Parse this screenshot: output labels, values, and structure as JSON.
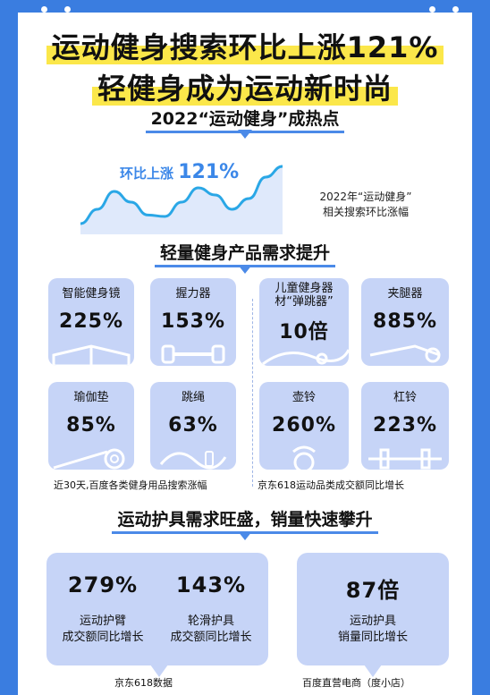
{
  "header": {
    "title_line1": "运动健身搜索环比上涨121%",
    "title_line2": "轻健身成为运动新时尚"
  },
  "section1": {
    "title": "2022“运动健身”成热点",
    "headline_prefix": "环比上涨",
    "headline_value": "121%",
    "caption_line1": "2022年“运动健身”",
    "caption_line2": "相关搜索环比涨幅"
  },
  "section2": {
    "title": "轻量健身产品需求提升",
    "left_source": "近30天,百度各类健身用品搜索涨幅",
    "right_source": "京东618运动品类成交额同比增长",
    "cards": [
      {
        "label": "智能健身镜",
        "value": "225%",
        "icon": "fitness-mirror-icon"
      },
      {
        "label": "握力器",
        "value": "153%",
        "icon": "grip-trainer-icon"
      },
      {
        "label": "儿童健身器材“弹跳器”",
        "value": "10倍",
        "icon": "kids-bouncer-icon"
      },
      {
        "label": "夹腿器",
        "value": "885%",
        "icon": "leg-clamp-icon"
      },
      {
        "label": "瑜伽垫",
        "value": "85%",
        "icon": "yoga-mat-icon"
      },
      {
        "label": "跳绳",
        "value": "63%",
        "icon": "jump-rope-icon"
      },
      {
        "label": "壶铃",
        "value": "260%",
        "icon": "kettlebell-icon"
      },
      {
        "label": "杠铃",
        "value": "223%",
        "icon": "barbell-icon"
      }
    ]
  },
  "section3": {
    "title": "运动护具需求旺盛，销量快速攀升",
    "jd_stats": [
      {
        "value": "279%",
        "label_line1": "运动护臂",
        "label_line2": "成交额同比增长"
      },
      {
        "value": "143%",
        "label_line1": "轮滑护具",
        "label_line2": "成交额同比增长"
      }
    ],
    "jd_source": "京东618数据",
    "baidu_stat": {
      "value": "87倍",
      "label_line1": "运动护具",
      "label_line2": "销量同比增长"
    },
    "baidu_source": "百度直营电商（度小店）"
  },
  "chart_data": {
    "type": "line",
    "title": "2022“运动健身”成热点",
    "annotation": "环比上涨121%",
    "caption": "2022年“运动健身” 相关搜索环比涨幅",
    "x": [
      0,
      1,
      2,
      3,
      4,
      5,
      6,
      7,
      8,
      9,
      10,
      11,
      12
    ],
    "y": [
      10,
      30,
      55,
      40,
      22,
      20,
      40,
      60,
      50,
      30,
      45,
      75,
      90
    ],
    "xlabel": "",
    "ylabel": "",
    "ylim": [
      0,
      100
    ],
    "grid": false,
    "colors": {
      "line": "#2aa7e6",
      "fill": "#dfe9fb"
    }
  },
  "colors": {
    "background": "#3a7de0",
    "accent": "#4b8ae8",
    "highlight": "#fbe74a",
    "card": "#c6d4f7",
    "headline": "#3b87e8"
  }
}
